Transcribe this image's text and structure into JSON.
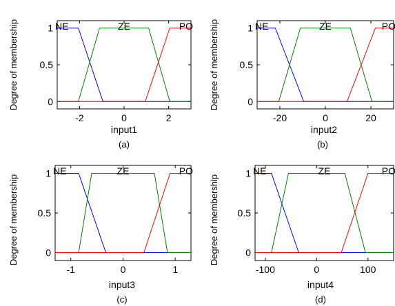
{
  "figure": {
    "panels": [
      {
        "caption": "(a)",
        "xlabel": "input1",
        "ylabel": "Degree of membership",
        "mf_labels": [
          "NE",
          "ZE",
          "PO"
        ]
      },
      {
        "caption": "(b)",
        "xlabel": "input2",
        "ylabel": "Degree of membership",
        "mf_labels": [
          "NE",
          "ZE",
          "PO"
        ]
      },
      {
        "caption": "(c)",
        "xlabel": "input3",
        "ylabel": "Degree of membership",
        "mf_labels": [
          "NE",
          "ZE",
          "PO"
        ]
      },
      {
        "caption": "(d)",
        "xlabel": "input4",
        "ylabel": "Degree of membership",
        "mf_labels": [
          "NE",
          "ZE",
          "PO"
        ]
      }
    ]
  },
  "chart_data": [
    {
      "type": "line",
      "xlabel": "input1",
      "ylabel": "Degree of membership",
      "caption": "(a)",
      "xlim": [
        -3,
        3
      ],
      "ylim": [
        -0.1,
        1.1
      ],
      "xticks": [
        -2,
        0,
        2
      ],
      "xtick_labels": [
        "-2",
        "0",
        "2"
      ],
      "yticks": [
        0,
        0.5,
        1
      ],
      "ytick_labels": [
        "0",
        "0.5",
        "1"
      ],
      "series": [
        {
          "name": "NE",
          "color": "#0000ff",
          "x": [
            -3,
            -2.05,
            -0.95,
            3
          ],
          "y": [
            1,
            1,
            0,
            0
          ]
        },
        {
          "name": "ZE",
          "color": "#008000",
          "x": [
            -3,
            -2.05,
            -1.1,
            1.1,
            2.05,
            3
          ],
          "y": [
            0,
            0,
            1,
            1,
            0,
            0
          ]
        },
        {
          "name": "PO",
          "color": "#ff0000",
          "x": [
            -3,
            0.95,
            2.05,
            3
          ],
          "y": [
            0,
            0,
            1,
            1
          ]
        }
      ]
    },
    {
      "type": "line",
      "xlabel": "input2",
      "ylabel": "Degree of membership",
      "caption": "(b)",
      "xlim": [
        -30,
        30
      ],
      "ylim": [
        -0.1,
        1.1
      ],
      "xticks": [
        -20,
        0,
        20
      ],
      "xtick_labels": [
        "-20",
        "0",
        "20"
      ],
      "yticks": [
        0,
        0.5,
        1
      ],
      "ytick_labels": [
        "0",
        "0.5",
        "1"
      ],
      "series": [
        {
          "name": "NE",
          "color": "#0000ff",
          "x": [
            -30,
            -22,
            -9.5,
            30
          ],
          "y": [
            1,
            1,
            0,
            0
          ]
        },
        {
          "name": "ZE",
          "color": "#008000",
          "x": [
            -30,
            -20.5,
            -11,
            11,
            20.5,
            30
          ],
          "y": [
            0,
            0,
            1,
            1,
            0,
            0
          ]
        },
        {
          "name": "PO",
          "color": "#ff0000",
          "x": [
            -30,
            9.5,
            22,
            30
          ],
          "y": [
            0,
            0,
            1,
            1
          ]
        }
      ]
    },
    {
      "type": "line",
      "xlabel": "input3",
      "ylabel": "Degree of membership",
      "caption": "(c)",
      "xlim": [
        -1.3,
        1.3
      ],
      "ylim": [
        -0.1,
        1.1
      ],
      "xticks": [
        -1,
        0,
        1
      ],
      "xtick_labels": [
        "-1",
        "0",
        "1"
      ],
      "yticks": [
        0,
        0.5,
        1
      ],
      "ytick_labels": [
        "0",
        "0.5",
        "1"
      ],
      "series": [
        {
          "name": "NE",
          "color": "#0000ff",
          "x": [
            -1.3,
            -0.85,
            -0.33,
            1.3
          ],
          "y": [
            1,
            1,
            0,
            0
          ]
        },
        {
          "name": "ZE",
          "color": "#008000",
          "x": [
            -1.3,
            -0.85,
            -0.6,
            0.6,
            0.85,
            1.3
          ],
          "y": [
            0,
            0,
            1,
            1,
            0,
            0
          ]
        },
        {
          "name": "PO",
          "color": "#ff0000",
          "x": [
            -1.3,
            0.4,
            0.9,
            1.3
          ],
          "y": [
            0,
            0,
            1,
            1
          ]
        }
      ]
    },
    {
      "type": "line",
      "xlabel": "input4",
      "ylabel": "Degree of membership",
      "caption": "(d)",
      "xlim": [
        -120,
        150
      ],
      "ylim": [
        -0.1,
        1.1
      ],
      "xticks": [
        -100,
        0,
        100
      ],
      "xtick_labels": [
        "-100",
        "0",
        "100"
      ],
      "yticks": [
        0,
        0.5,
        1
      ],
      "ytick_labels": [
        "0",
        "0.5",
        "1"
      ],
      "series": [
        {
          "name": "NE",
          "color": "#0000ff",
          "x": [
            -120,
            -88,
            -35,
            150
          ],
          "y": [
            1,
            1,
            0,
            0
          ]
        },
        {
          "name": "ZE",
          "color": "#008000",
          "x": [
            -120,
            -88,
            -55,
            55,
            95,
            150
          ],
          "y": [
            0,
            0,
            1,
            1,
            0,
            0
          ]
        },
        {
          "name": "PO",
          "color": "#ff0000",
          "x": [
            -120,
            48,
            100,
            150
          ],
          "y": [
            0,
            0,
            1,
            1
          ]
        }
      ]
    }
  ]
}
